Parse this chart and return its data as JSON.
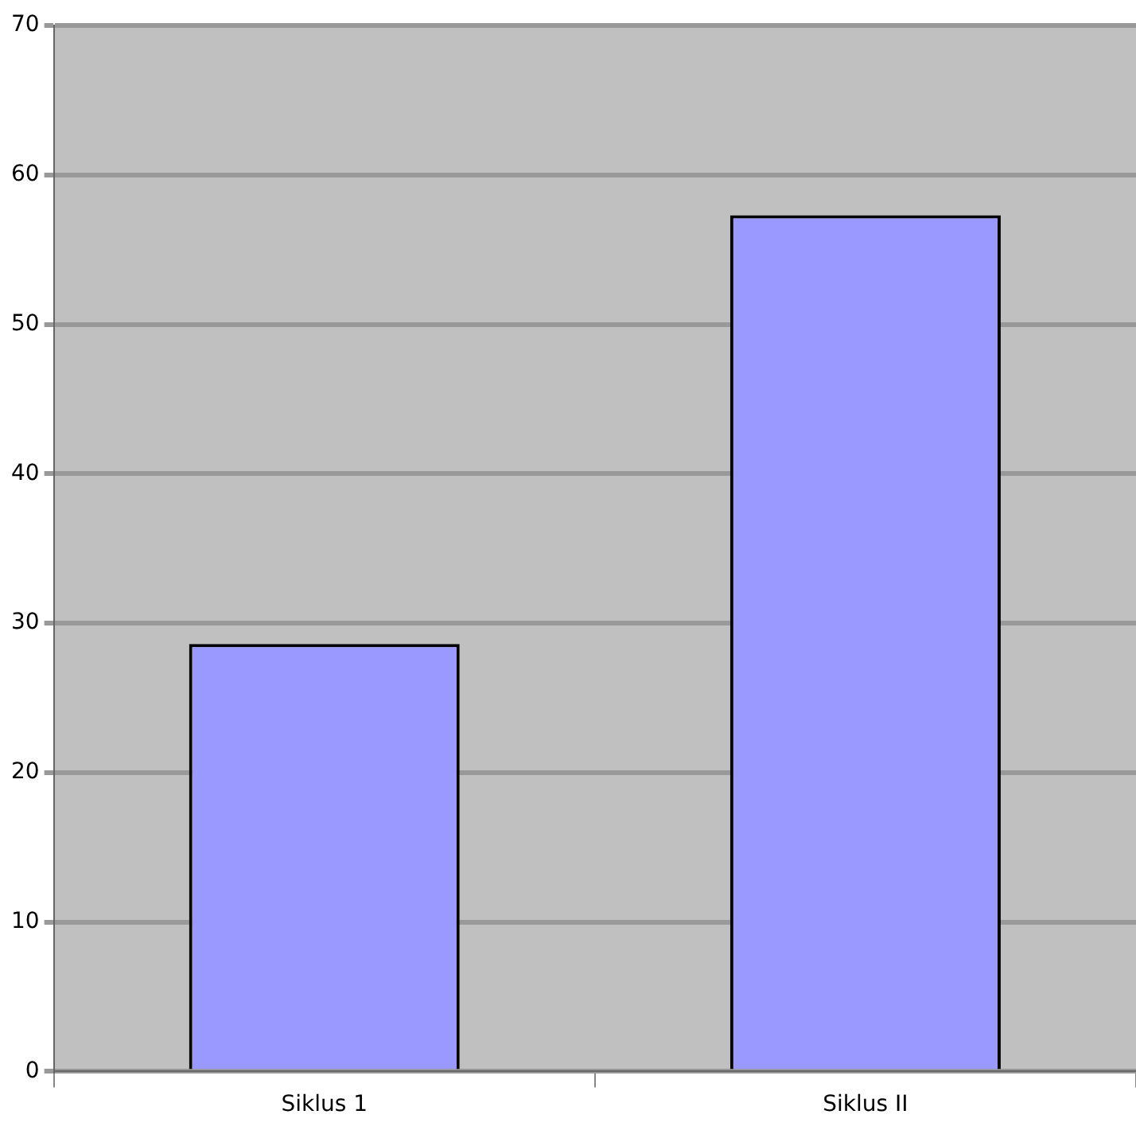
{
  "chart_data": {
    "type": "bar",
    "categories": [
      "Siklus 1",
      "Siklus II"
    ],
    "values": [
      28.6,
      57.3
    ],
    "color": "#9999ff",
    "ylim": [
      0,
      70
    ],
    "yticks": [
      0,
      10,
      20,
      30,
      40,
      50,
      60,
      70
    ],
    "grid": "y"
  }
}
